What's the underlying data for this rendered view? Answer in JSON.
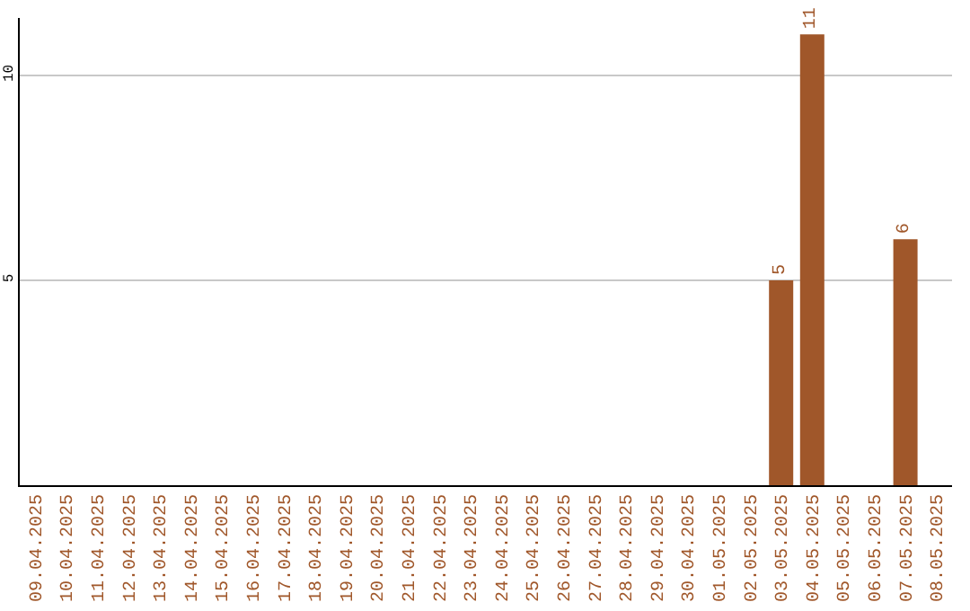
{
  "chart_data": {
    "type": "bar",
    "categories": [
      "09.04.2025",
      "10.04.2025",
      "11.04.2025",
      "12.04.2025",
      "13.04.2025",
      "14.04.2025",
      "15.04.2025",
      "16.04.2025",
      "17.04.2025",
      "18.04.2025",
      "19.04.2025",
      "20.04.2025",
      "21.04.2025",
      "22.04.2025",
      "23.04.2025",
      "24.04.2025",
      "25.04.2025",
      "26.04.2025",
      "27.04.2025",
      "28.04.2025",
      "29.04.2025",
      "30.04.2025",
      "01.05.2025",
      "02.05.2025",
      "03.05.2025",
      "04.05.2025",
      "05.05.2025",
      "06.05.2025",
      "07.05.2025",
      "08.05.2025"
    ],
    "values": [
      0,
      0,
      0,
      0,
      0,
      0,
      0,
      0,
      0,
      0,
      0,
      0,
      0,
      0,
      0,
      0,
      0,
      0,
      0,
      0,
      0,
      0,
      0,
      0,
      5,
      11,
      0,
      0,
      6,
      0
    ],
    "value_labels": [
      null,
      null,
      null,
      null,
      null,
      null,
      null,
      null,
      null,
      null,
      null,
      null,
      null,
      null,
      null,
      null,
      null,
      null,
      null,
      null,
      null,
      null,
      null,
      null,
      "5",
      "11",
      null,
      null,
      "6",
      null
    ],
    "color": "#a0572a",
    "ylim": [
      0,
      11.4
    ],
    "yticks": [
      5,
      10
    ],
    "grid": "y"
  }
}
